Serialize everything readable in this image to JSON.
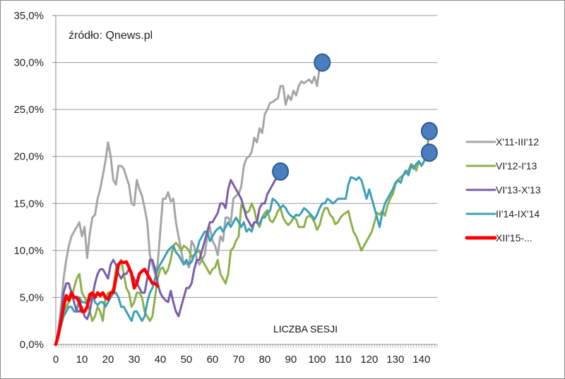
{
  "chart_data": {
    "type": "line",
    "title": "",
    "annotation": "źródło: Qnews.pl",
    "xlabel": "LICZBA SESJI",
    "ylabel": "",
    "xlim": [
      0,
      146
    ],
    "ylim": [
      0,
      35
    ],
    "grid": true,
    "legend_position": "right",
    "y_ticks": [
      {
        "value": 0,
        "label": "0,0%"
      },
      {
        "value": 5,
        "label": "5,0%"
      },
      {
        "value": 10,
        "label": "10,0%"
      },
      {
        "value": 15,
        "label": "15,0%"
      },
      {
        "value": 20,
        "label": "20,0%"
      },
      {
        "value": 25,
        "label": "25,0%"
      },
      {
        "value": 30,
        "label": "30,0%"
      },
      {
        "value": 35,
        "label": "35,0%"
      }
    ],
    "x_ticks": [
      {
        "value": 0,
        "label": "0"
      },
      {
        "value": 10,
        "label": "10"
      },
      {
        "value": 20,
        "label": "20"
      },
      {
        "value": 30,
        "label": "30"
      },
      {
        "value": 40,
        "label": "40"
      },
      {
        "value": 50,
        "label": "50"
      },
      {
        "value": 60,
        "label": "60"
      },
      {
        "value": 70,
        "label": "70"
      },
      {
        "value": 80,
        "label": "80"
      },
      {
        "value": 90,
        "label": "90"
      },
      {
        "value": 100,
        "label": "100"
      },
      {
        "value": 110,
        "label": "110"
      },
      {
        "value": 120,
        "label": "120"
      },
      {
        "value": 130,
        "label": "130"
      },
      {
        "value": 140,
        "label": "140"
      }
    ],
    "series": [
      {
        "name": "X'11-III'12",
        "color": "#a6a6a6",
        "end_marker": true,
        "values": [
          0,
          1.5,
          4,
          7,
          9,
          10.5,
          11.5,
          12,
          12.5,
          13,
          11.5,
          12.5,
          9.2,
          11.8,
          13.5,
          13.8,
          15.5,
          16.5,
          18,
          19.5,
          21.5,
          20,
          17.5,
          17,
          19,
          19,
          18.7,
          17.8,
          17,
          15,
          14.8,
          17.5,
          16.5,
          15.8,
          14.5,
          13,
          9.5,
          8.5,
          7.5,
          8.5,
          12,
          15.5,
          15.5,
          16.2,
          15.2,
          15.5,
          13,
          11.5,
          10,
          8.5,
          8.7,
          8.2,
          11,
          10.5,
          9,
          8.5,
          9,
          9.5,
          11.5,
          12.5,
          11,
          10.5,
          9.5,
          11.5,
          11,
          13.5,
          13.5,
          13,
          15.5,
          15.8,
          16,
          16.8,
          19,
          19.8,
          20,
          20.5,
          22,
          21.5,
          23,
          22.5,
          24.5,
          25,
          25.7,
          25.8,
          26,
          26.2,
          27.5,
          27.5,
          25.5,
          26.5,
          26,
          27,
          26.5,
          27.5,
          28,
          27.8,
          28,
          28.2,
          27.8,
          28.5,
          27.5,
          29.5,
          30
        ]
      },
      {
        "name": "VI'12-I'13",
        "color": "#8db04a",
        "end_marker": true,
        "values": [
          0,
          1,
          2.5,
          3.5,
          4,
          4.5,
          5,
          6,
          7,
          7.5,
          5.5,
          5,
          4.5,
          3.5,
          2.5,
          3,
          4,
          3.5,
          2.5,
          5,
          5.5,
          5.5,
          6,
          8,
          8.5,
          9,
          7.5,
          6,
          5.5,
          4,
          4.5,
          5.5,
          5.5,
          5,
          3.5,
          3,
          2.5,
          3,
          5,
          7,
          8,
          8.2,
          7.5,
          8,
          9,
          10.5,
          10.8,
          10.5,
          10,
          10.5,
          10.3,
          10,
          9.3,
          9.5,
          9.8,
          10,
          9,
          8.5,
          8,
          7.5,
          8,
          8.2,
          9,
          7.5,
          7,
          6.5,
          7.5,
          10,
          10.3,
          11,
          11.5,
          14.8,
          14.5,
          14,
          14.2,
          15,
          14.3,
          13,
          12.5,
          13.5,
          14,
          14.3,
          13.2,
          13,
          13.5,
          14.2,
          14.5,
          13.5,
          13,
          12.7,
          13,
          13.5,
          13.3,
          12.5,
          12.5,
          12.5,
          13.5,
          13.7,
          13.5,
          13,
          12.2,
          12.7,
          13.8,
          14.5,
          14.5,
          13.8,
          13.5,
          12.8,
          13,
          13.5,
          13.8,
          14,
          14.2,
          13,
          12,
          11.5,
          10.8,
          10,
          10.5,
          11,
          11.5,
          12,
          13,
          14,
          13.8,
          14.2,
          13.7,
          14.8,
          15.5,
          16,
          17,
          17.5,
          17.8,
          18,
          18.2,
          18.5,
          19.2,
          19,
          18.5,
          19.5,
          19,
          19.5,
          20.5,
          22.7
        ]
      },
      {
        "name": "VI'13-X'13",
        "color": "#7b5ea6",
        "end_marker": true,
        "values": [
          0,
          1.5,
          3,
          5.5,
          6.5,
          6.5,
          5.5,
          4.5,
          3.5,
          3.5,
          4,
          3,
          2.7,
          3.5,
          5,
          6.5,
          7.5,
          8,
          8,
          7.5,
          7,
          8.5,
          9,
          8.5,
          7.5,
          7,
          7.5,
          7.5,
          8,
          7.5,
          7,
          6.5,
          6,
          5.5,
          5.5,
          7,
          9,
          9,
          8,
          6.5,
          5.5,
          5,
          4.7,
          4.5,
          5.7,
          4.5,
          3.5,
          3,
          4,
          5,
          6,
          6,
          6.5,
          8,
          9,
          9,
          10,
          11,
          12,
          13,
          13,
          13.5,
          14,
          15,
          15,
          14.5,
          16.5,
          17.5,
          17,
          16.5,
          16,
          15.5,
          14.5,
          13.5,
          13,
          12.5,
          13,
          13,
          14.5,
          15,
          15,
          16,
          16.5,
          17,
          17.5,
          18,
          18.4
        ]
      },
      {
        "name": "II'14-IX'14",
        "color": "#3d9fb8",
        "end_marker": true,
        "values": [
          0,
          1,
          2,
          3,
          3.5,
          4,
          4,
          3.5,
          3.5,
          5,
          4.5,
          4.5,
          4.3,
          4.7,
          5.5,
          4.5,
          4.2,
          4.5,
          4.5,
          4,
          4.5,
          5,
          5.5,
          5.5,
          5,
          4,
          4,
          3.5,
          3,
          2.5,
          3.5,
          3.5,
          3,
          2.5,
          3,
          4.5,
          5.5,
          6,
          7,
          8,
          8.5,
          9,
          9.5,
          10,
          10.3,
          10.5,
          9.8,
          9.5,
          9,
          8.5,
          9,
          8.5,
          8.8,
          9.5,
          10,
          11,
          11.5,
          12,
          12,
          11,
          11.5,
          12,
          12.3,
          12.5,
          12,
          12.5,
          13,
          12.5,
          13,
          13.5,
          13,
          12.5,
          13,
          12,
          12.3,
          12,
          13,
          13,
          12.8,
          13.5,
          13.5,
          14,
          14.2,
          15.5,
          15.3,
          15,
          14.5,
          14.8,
          14.5,
          14,
          13.7,
          13.5,
          13.8,
          13.7,
          14,
          14.5,
          14.3,
          14,
          13.7,
          13.3,
          13.8,
          14.5,
          15,
          15,
          15.5,
          15.3,
          15,
          15.2,
          15.5,
          15.5,
          15.5,
          15.5,
          17,
          17.8,
          17.7,
          17.5,
          17.8,
          17.5,
          16.5,
          15.5,
          16.5,
          15.5,
          14.5,
          13.5,
          12.5,
          14,
          15,
          15.5,
          16,
          16.5,
          17.2,
          17.5,
          17.2,
          18,
          18.5,
          18,
          19,
          18.7,
          19.2,
          19.5,
          19,
          19.5,
          20.5,
          20.4
        ]
      },
      {
        "name": "XII'15-...",
        "color": "#ff0000",
        "end_marker": false,
        "values": [
          0,
          1,
          2.5,
          4,
          5.2,
          4.7,
          5.5,
          5,
          5,
          4.5,
          3.5,
          3.5,
          4,
          5.3,
          5.5,
          5,
          5.5,
          5.2,
          5.5,
          5,
          4.8,
          5.5,
          5.5,
          7,
          8.5,
          8.8,
          8.7,
          8.8,
          8.2,
          7.5,
          6,
          6.5,
          7.5,
          7.8,
          8,
          7.5,
          7,
          6.5,
          6.5,
          6.2
        ]
      }
    ]
  }
}
